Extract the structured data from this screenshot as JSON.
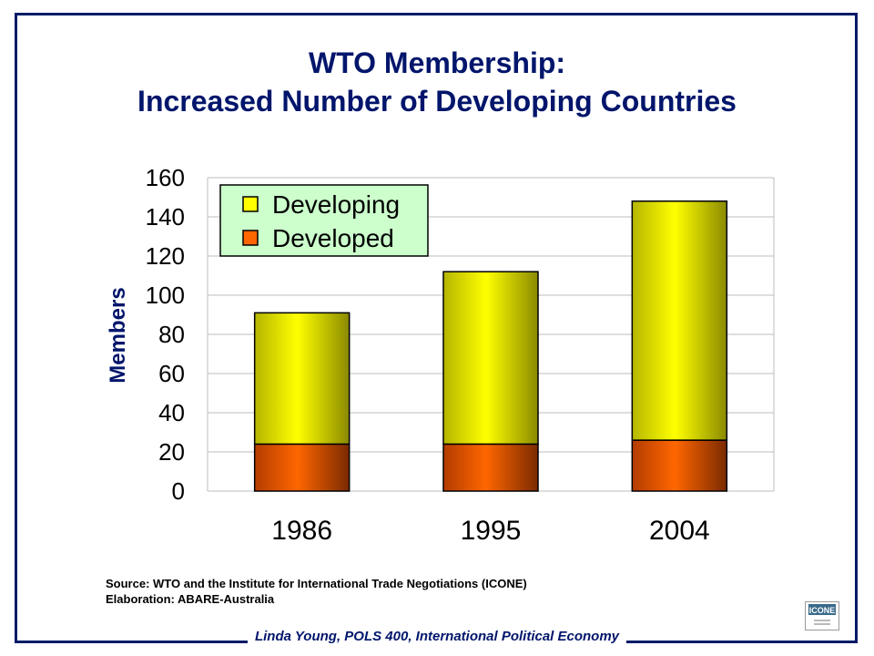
{
  "slide": {
    "title_line1": "WTO Membership:",
    "title_line2": "Increased Number of Developing Countries",
    "source_line1": "Source: WTO and the Institute for International Trade Negotiations (ICONE)",
    "source_line2": "Elaboration: ABARE-Australia",
    "footer": "Linda Young, POLS 400, International Political Economy",
    "logo_text": "ICONE"
  },
  "colors": {
    "title": "#00156b",
    "developing": "#ffff00",
    "developed": "#ff6600",
    "legend_bg": "#ccffcc",
    "frame": "#001a66"
  },
  "chart_data": {
    "type": "bar",
    "stacked": true,
    "categories": [
      "1986",
      "1995",
      "2004"
    ],
    "series": [
      {
        "name": "Developed",
        "values": [
          24,
          24,
          26
        ]
      },
      {
        "name": "Developing",
        "values": [
          67,
          88,
          122
        ]
      }
    ],
    "ylabel": "Members",
    "ylim": [
      0,
      160
    ],
    "yticks": [
      "0",
      "20",
      "40",
      "60",
      "80",
      "100",
      "120",
      "140",
      "160"
    ],
    "grid": true,
    "legend_position": "top-left",
    "legend": [
      "Developing",
      "Developed"
    ]
  }
}
